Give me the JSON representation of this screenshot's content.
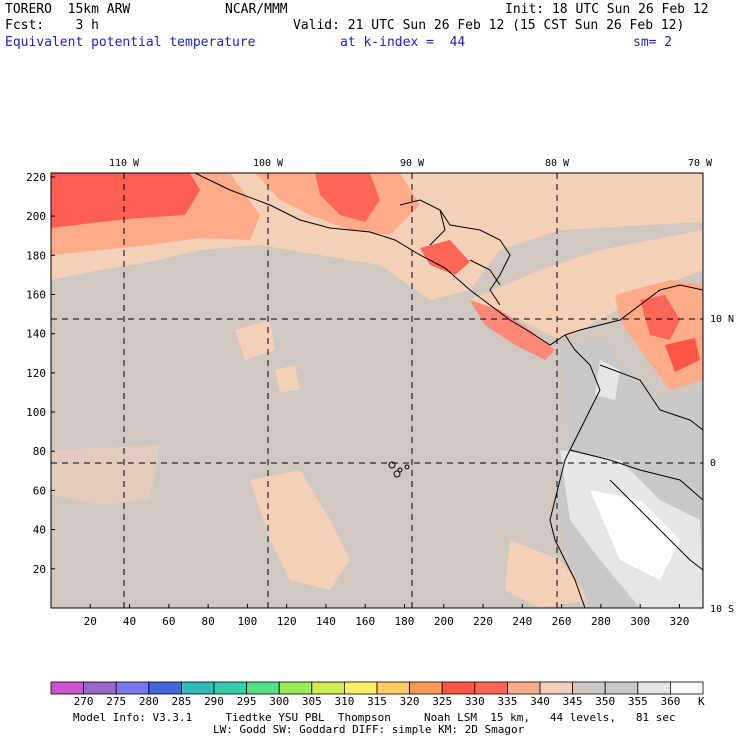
{
  "header": {
    "model": "TORERO  15km ARW",
    "center": "NCAR/MMM",
    "init": "Init: 18 UTC Sun 26 Feb 12",
    "fcst": "Fcst:    3 h",
    "valid": "Valid: 21 UTC Sun 26 Feb 12 (15 CST Sun 26 Feb 12)",
    "field": "Equivalent potential temperature",
    "kindex": "at k-index =  44",
    "smooth": "sm= 2"
  },
  "map": {
    "lon_labels": [
      "110 W",
      "100 W",
      "90 W",
      "80 W",
      "70 W"
    ],
    "lat_labels": [
      "10 N",
      "0",
      "10 S"
    ],
    "y_ticks": [
      "220",
      "200",
      "180",
      "160",
      "140",
      "120",
      "100",
      "80",
      "60",
      "40",
      "20"
    ],
    "x_ticks": [
      "20",
      "40",
      "60",
      "80",
      "100",
      "120",
      "140",
      "160",
      "180",
      "200",
      "220",
      "240",
      "260",
      "280",
      "300",
      "320"
    ]
  },
  "colorbar": {
    "unit": "K",
    "labels": [
      "270",
      "275",
      "280",
      "285",
      "290",
      "295",
      "300",
      "305",
      "310",
      "315",
      "320",
      "325",
      "330",
      "335",
      "340",
      "345",
      "350",
      "355",
      "360"
    ],
    "colors": [
      "#cc55cc",
      "#9966cc",
      "#7777ee",
      "#4466dd",
      "#33bbbb",
      "#33ccaa",
      "#55dd88",
      "#99ee55",
      "#ccee55",
      "#ffee66",
      "#ffcc66",
      "#ff9955",
      "#ff5544",
      "#ff6655",
      "#ffaa88",
      "#f5d0b8",
      "#cfc7c0",
      "#c8c8c8",
      "#e6e6e6",
      "#ffffff"
    ]
  },
  "info": {
    "line1": "Model Info: V3.3.1     Tiedtke YSU PBL  Thompson     Noah LSM  15 km,   44 levels,   81 sec",
    "line2": "LW: Godd SW: Goddard DIFF: simple KM: 2D Smagor"
  }
}
